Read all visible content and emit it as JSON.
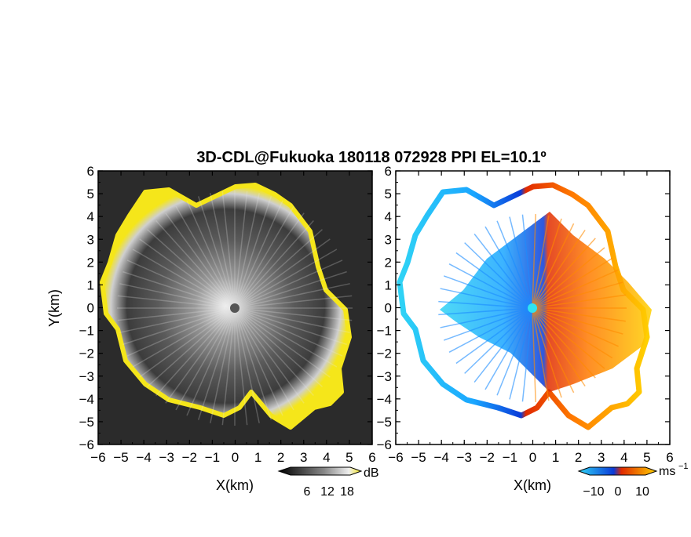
{
  "chart_data": [
    {
      "type": "heatmap",
      "panel": "reflectivity",
      "title": "3D-CDL@Fukuoka 180118 072928 PPI EL=10.1º",
      "xlabel": "X(km)",
      "ylabel": "Y(km)",
      "xlim": [
        -6,
        6
      ],
      "ylim": [
        -6,
        6
      ],
      "xticks": [
        "−6",
        "−5",
        "−4",
        "−3",
        "−2",
        "−1",
        "0",
        "1",
        "2",
        "3",
        "4",
        "5",
        "6"
      ],
      "yticks": [
        "6",
        "5",
        "4",
        "3",
        "2",
        "1",
        "0",
        "−1",
        "−2",
        "−3",
        "−4",
        "−5",
        "−6"
      ],
      "colorbar": {
        "unit": "dB",
        "ticks": [
          "6",
          "12",
          "18"
        ],
        "range": [
          0,
          24
        ]
      },
      "colors": {
        "background": "#2b2b2b",
        "echo_edge": "#f5e61a",
        "center": "#ffffff"
      }
    },
    {
      "type": "heatmap",
      "panel": "doppler_velocity",
      "xlabel": "X(km)",
      "xlim": [
        -6,
        6
      ],
      "ylim": [
        -6,
        6
      ],
      "xticks": [
        "−6",
        "−5",
        "−4",
        "−3",
        "−2",
        "−1",
        "0",
        "1",
        "2",
        "3",
        "4",
        "5",
        "6"
      ],
      "yticks": [
        "6",
        "5",
        "4",
        "3",
        "2",
        "1",
        "0",
        "−1",
        "−2",
        "−3",
        "−4",
        "−5",
        "−6"
      ],
      "colorbar": {
        "unit": "ms",
        "unit_exp": "−1",
        "ticks": [
          "−10",
          "0",
          "10"
        ],
        "range": [
          -15,
          15
        ]
      },
      "colors": {
        "negative": "#1a5cff",
        "positive": "#ff5a00",
        "far_negative": "#2fd3f5",
        "far_positive": "#ffd000",
        "center": "#2fe3f0"
      }
    }
  ]
}
